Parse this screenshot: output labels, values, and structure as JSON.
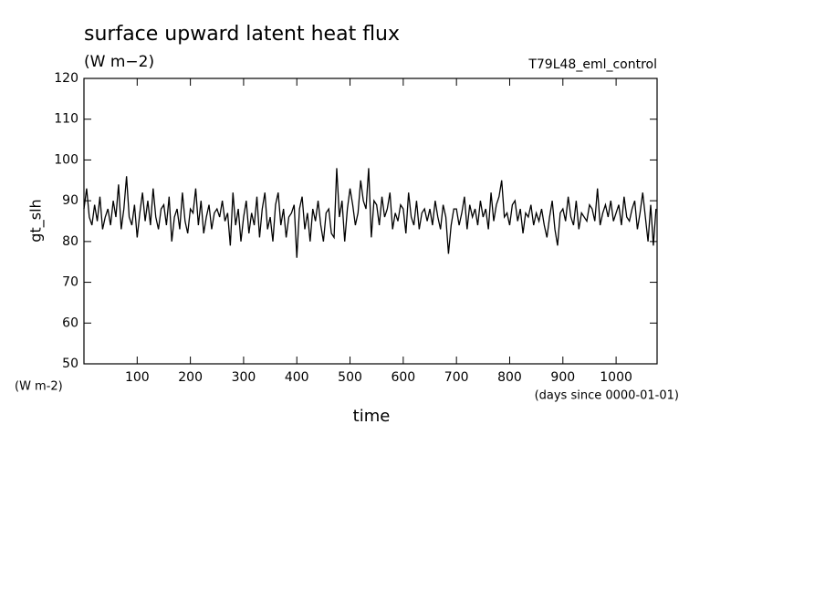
{
  "chart_data": {
    "type": "line",
    "title": "surface upward latent heat flux",
    "subtitle": "(W m−2)",
    "annotation": "T79L48_eml_control",
    "ylabel": "gt_slh",
    "yunits": "(W m-2)",
    "xunits": "(days since 0000-01-01)",
    "xlabel": "time",
    "xlim": [
      0,
      1077
    ],
    "ylim": [
      50,
      120
    ],
    "xticks": [
      100,
      200,
      300,
      400,
      500,
      600,
      700,
      800,
      900,
      1000
    ],
    "yticks": [
      50,
      60,
      70,
      80,
      90,
      100,
      110,
      120
    ],
    "x": [
      0,
      5,
      10,
      15,
      20,
      25,
      30,
      35,
      40,
      45,
      50,
      55,
      60,
      65,
      70,
      75,
      80,
      85,
      90,
      95,
      100,
      105,
      110,
      115,
      120,
      125,
      130,
      135,
      140,
      145,
      150,
      155,
      160,
      165,
      170,
      175,
      180,
      185,
      190,
      195,
      200,
      205,
      210,
      215,
      220,
      225,
      230,
      235,
      240,
      245,
      250,
      255,
      260,
      265,
      270,
      275,
      280,
      285,
      290,
      295,
      300,
      305,
      310,
      315,
      320,
      325,
      330,
      335,
      340,
      345,
      350,
      355,
      360,
      365,
      370,
      375,
      380,
      385,
      390,
      395,
      400,
      405,
      410,
      415,
      420,
      425,
      430,
      435,
      440,
      445,
      450,
      455,
      460,
      465,
      470,
      475,
      480,
      485,
      490,
      495,
      500,
      505,
      510,
      515,
      520,
      525,
      530,
      535,
      540,
      545,
      550,
      555,
      560,
      565,
      570,
      575,
      580,
      585,
      590,
      595,
      600,
      605,
      610,
      615,
      620,
      625,
      630,
      635,
      640,
      645,
      650,
      655,
      660,
      665,
      670,
      675,
      680,
      685,
      690,
      695,
      700,
      705,
      710,
      715,
      720,
      725,
      730,
      735,
      740,
      745,
      750,
      755,
      760,
      765,
      770,
      775,
      780,
      785,
      790,
      795,
      800,
      805,
      810,
      815,
      820,
      825,
      830,
      835,
      840,
      845,
      850,
      855,
      860,
      865,
      870,
      875,
      880,
      885,
      890,
      895,
      900,
      905,
      910,
      915,
      920,
      925,
      930,
      935,
      940,
      945,
      950,
      955,
      960,
      965,
      970,
      975,
      980,
      985,
      990,
      995,
      1000,
      1005,
      1010,
      1015,
      1020,
      1025,
      1030,
      1035,
      1040,
      1045,
      1050,
      1055,
      1060,
      1065,
      1070,
      1075
    ],
    "series": [
      {
        "name": "gt_slh",
        "color": "#000000",
        "values": [
          88,
          93,
          86,
          84,
          89,
          85,
          91,
          83,
          86,
          88,
          84,
          90,
          86,
          94,
          83,
          88,
          96,
          86,
          84,
          89,
          81,
          87,
          92,
          85,
          90,
          84,
          93,
          86,
          83,
          88,
          89,
          84,
          91,
          80,
          86,
          88,
          83,
          92,
          85,
          82,
          88,
          87,
          93,
          84,
          90,
          82,
          86,
          89,
          83,
          87,
          88,
          86,
          90,
          85,
          87,
          79,
          92,
          84,
          88,
          80,
          86,
          90,
          82,
          87,
          84,
          91,
          81,
          88,
          92,
          83,
          86,
          80,
          89,
          92,
          84,
          88,
          81,
          86,
          87,
          89,
          76,
          88,
          91,
          83,
          87,
          80,
          88,
          85,
          90,
          84,
          80,
          87,
          88,
          82,
          81,
          98,
          86,
          90,
          80,
          88,
          93,
          89,
          84,
          87,
          95,
          90,
          88,
          98,
          81,
          90,
          89,
          84,
          91,
          86,
          88,
          92,
          83,
          87,
          85,
          89,
          88,
          82,
          92,
          86,
          84,
          90,
          83,
          87,
          88,
          85,
          88,
          84,
          90,
          86,
          83,
          89,
          86,
          77,
          84,
          88,
          88,
          84,
          87,
          91,
          83,
          89,
          86,
          88,
          84,
          90,
          86,
          88,
          83,
          92,
          85,
          89,
          91,
          95,
          86,
          87,
          84,
          89,
          90,
          85,
          88,
          82,
          87,
          86,
          89,
          84,
          87,
          85,
          88,
          84,
          81,
          86,
          90,
          83,
          79,
          87,
          88,
          85,
          91,
          86,
          84,
          90,
          83,
          87,
          86,
          85,
          89,
          88,
          85,
          93,
          84,
          87,
          89,
          86,
          90,
          85,
          87,
          89,
          84,
          91,
          86,
          85,
          88,
          90,
          83,
          87,
          92,
          86,
          80,
          89,
          79,
          88
        ]
      }
    ]
  }
}
